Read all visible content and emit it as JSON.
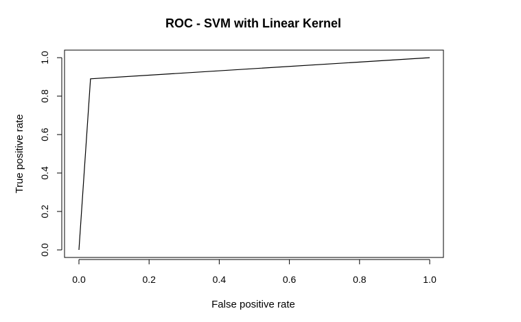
{
  "chart_data": {
    "type": "line",
    "title": "ROC - SVM with Linear Kernel",
    "xlabel": "False positive rate",
    "ylabel": "True positive rate",
    "xlim": [
      0,
      1
    ],
    "ylim": [
      0,
      1
    ],
    "x_ticks": [
      0.0,
      0.2,
      0.4,
      0.6,
      0.8,
      1.0
    ],
    "y_ticks": [
      0.0,
      0.2,
      0.4,
      0.6,
      0.8,
      1.0
    ],
    "x_tick_labels": [
      "0.0",
      "0.2",
      "0.4",
      "0.6",
      "0.8",
      "1.0"
    ],
    "y_tick_labels": [
      "0.0",
      "0.2",
      "0.4",
      "0.6",
      "0.8",
      "1.0"
    ],
    "grid": false,
    "series": [
      {
        "name": "ROC",
        "x": [
          0.0,
          0.033,
          1.0
        ],
        "y": [
          0.0,
          0.89,
          1.0
        ]
      }
    ],
    "colors": {
      "line": "#000000",
      "background": "#ffffff"
    }
  }
}
